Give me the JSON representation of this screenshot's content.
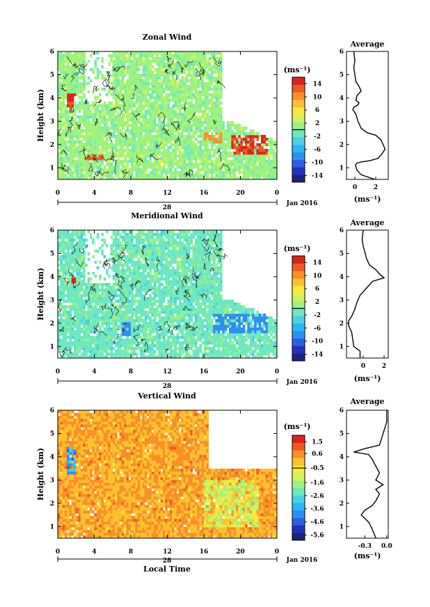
{
  "panels": [
    {
      "id": "zonal",
      "title": "Zonal Wind",
      "ylabel": "Height (km)",
      "yticks": [
        "1",
        "2",
        "3",
        "4",
        "5",
        "6"
      ],
      "xticks": [
        "0",
        "4",
        "8",
        "12",
        "16",
        "20",
        "0"
      ],
      "date_label": "28",
      "month_label": "Jan 2016",
      "xlabel": "",
      "colorbar": {
        "unit": "(ms⁻¹)",
        "ticks": [
          "14",
          "10",
          "6",
          "2",
          "-2",
          "-6",
          "-10",
          "-14"
        ],
        "min": -16,
        "max": 16
      },
      "avg": {
        "title": "Average",
        "xticks": [
          "0",
          "2"
        ],
        "xlabel": "(ms⁻¹)",
        "xlim": [
          -0.8,
          3.2
        ],
        "profile": [
          [
            1.9,
            0.5
          ],
          [
            0.6,
            0.7
          ],
          [
            0.2,
            0.9
          ],
          [
            0.05,
            1.1
          ],
          [
            0.2,
            1.2
          ],
          [
            0.6,
            1.25
          ],
          [
            1.4,
            1.3
          ],
          [
            2.2,
            1.4
          ],
          [
            2.6,
            1.6
          ],
          [
            2.9,
            1.8
          ],
          [
            2.7,
            2.0
          ],
          [
            2.5,
            2.2
          ],
          [
            2.0,
            2.4
          ],
          [
            1.2,
            2.5
          ],
          [
            0.6,
            2.7
          ],
          [
            0.3,
            3.0
          ],
          [
            0.1,
            3.3
          ],
          [
            -0.2,
            3.5
          ],
          [
            -0.1,
            3.6
          ],
          [
            0.3,
            3.7
          ],
          [
            0.4,
            3.8
          ],
          [
            0.1,
            3.9
          ],
          [
            0.2,
            4.1
          ],
          [
            0.6,
            4.3
          ],
          [
            0.4,
            4.5
          ],
          [
            0.1,
            4.7
          ],
          [
            0.0,
            5.0
          ],
          [
            -0.1,
            5.3
          ],
          [
            0.0,
            5.6
          ],
          [
            -0.1,
            6.0
          ]
        ]
      }
    },
    {
      "id": "meridional",
      "title": "Meridional Wind",
      "ylabel": "Height (km)",
      "yticks": [
        "1",
        "2",
        "3",
        "4",
        "5",
        "6"
      ],
      "xticks": [
        "0",
        "4",
        "8",
        "12",
        "16",
        "20",
        "0"
      ],
      "date_label": "28",
      "month_label": "Jan 2016",
      "xlabel": "",
      "colorbar": {
        "unit": "(ms⁻¹)",
        "ticks": [
          "14",
          "10",
          "6",
          "2",
          "-2",
          "-6",
          "-10",
          "-14"
        ],
        "min": -16,
        "max": 16
      },
      "avg": {
        "title": "Average",
        "xticks": [
          "0",
          "2"
        ],
        "xlabel": "(ms⁻¹)",
        "xlim": [
          -1.6,
          2.4
        ],
        "profile": [
          [
            -0.3,
            0.5
          ],
          [
            -0.3,
            0.8
          ],
          [
            -0.9,
            1.0
          ],
          [
            -1.0,
            1.3
          ],
          [
            -1.1,
            1.6
          ],
          [
            -1.4,
            1.9
          ],
          [
            -1.4,
            2.1
          ],
          [
            -1.1,
            2.3
          ],
          [
            -0.8,
            2.6
          ],
          [
            -0.6,
            2.9
          ],
          [
            -0.3,
            3.2
          ],
          [
            0.3,
            3.5
          ],
          [
            0.9,
            3.8
          ],
          [
            2.0,
            3.95
          ],
          [
            1.6,
            4.1
          ],
          [
            1.2,
            4.3
          ],
          [
            0.6,
            4.5
          ],
          [
            0.3,
            4.8
          ],
          [
            0.2,
            5.0
          ],
          [
            0.0,
            5.3
          ],
          [
            -0.1,
            5.6
          ],
          [
            0.0,
            6.0
          ]
        ]
      }
    },
    {
      "id": "vertical",
      "title": "Vertical Wind",
      "ylabel": "Height (km)",
      "yticks": [
        "1",
        "2",
        "3",
        "4",
        "5",
        "6"
      ],
      "xticks": [
        "0",
        "4",
        "8",
        "12",
        "16",
        "20",
        "0"
      ],
      "date_label": "28",
      "month_label": "Jan 2016",
      "xlabel": "Local Time",
      "colorbar": {
        "unit": "(ms⁻¹)",
        "ticks": [
          "1.5",
          "0.6",
          "-0.5",
          "-1.6",
          "-2.6",
          "-3.6",
          "-4.6",
          "-5.6"
        ],
        "min": -6,
        "max": 2
      },
      "avg": {
        "title": "Average",
        "xticks": [
          "-0.3",
          "0.0"
        ],
        "xlabel": "(ms⁻¹)",
        "xlim": [
          -0.55,
          0.02
        ],
        "profile": [
          [
            -0.15,
            0.5
          ],
          [
            -0.2,
            0.9
          ],
          [
            -0.25,
            1.2
          ],
          [
            -0.35,
            1.5
          ],
          [
            -0.3,
            1.7
          ],
          [
            -0.2,
            1.9
          ],
          [
            -0.15,
            2.1
          ],
          [
            -0.1,
            2.4
          ],
          [
            -0.15,
            2.6
          ],
          [
            -0.05,
            2.8
          ],
          [
            -0.15,
            3.0
          ],
          [
            -0.1,
            3.3
          ],
          [
            -0.15,
            3.6
          ],
          [
            -0.2,
            3.9
          ],
          [
            -0.25,
            4.1
          ],
          [
            -0.45,
            4.2
          ],
          [
            -0.3,
            4.35
          ],
          [
            -0.1,
            4.5
          ],
          [
            -0.05,
            5.0
          ],
          [
            0.0,
            5.5
          ],
          [
            0.0,
            6.0
          ]
        ]
      }
    }
  ],
  "chart_data": [
    {
      "type": "heatmap",
      "title": "Zonal Wind",
      "ylabel": "Height (km)",
      "xlabel": "",
      "xlim": [
        0,
        24
      ],
      "ylim": [
        0.5,
        6
      ],
      "colorbar_range": [
        -16,
        16
      ],
      "features": [
        {
          "x": [
            0,
            18
          ],
          "y": [
            0.5,
            6
          ],
          "value": 1,
          "note": "background"
        },
        {
          "x": [
            1,
            2
          ],
          "y": [
            3.5,
            4.2
          ],
          "value": 14
        },
        {
          "x": [
            3,
            5
          ],
          "y": [
            1.3,
            1.6
          ],
          "value": 12
        },
        {
          "x": [
            16,
            18
          ],
          "y": [
            2,
            2.5
          ],
          "value": 10
        },
        {
          "x": [
            19,
            23
          ],
          "y": [
            1.6,
            2.4
          ],
          "value": 14
        }
      ]
    },
    {
      "type": "heatmap",
      "title": "Meridional Wind",
      "ylabel": "Height (km)",
      "xlabel": "",
      "xlim": [
        0,
        24
      ],
      "ylim": [
        0.5,
        6
      ],
      "colorbar_range": [
        -16,
        16
      ],
      "features": [
        {
          "x": [
            0,
            18
          ],
          "y": [
            0.5,
            6
          ],
          "value": -1,
          "note": "background"
        },
        {
          "x": [
            1.5,
            2
          ],
          "y": [
            3.7,
            4.1
          ],
          "value": 14
        },
        {
          "x": [
            7,
            8
          ],
          "y": [
            1.5,
            2
          ],
          "value": -8
        },
        {
          "x": [
            17,
            23
          ],
          "y": [
            1.6,
            2.4
          ],
          "value": -8
        }
      ]
    },
    {
      "type": "heatmap",
      "title": "Vertical Wind",
      "ylabel": "Height (km)",
      "xlabel": "Local Time",
      "xlim": [
        0,
        24
      ],
      "ylim": [
        0.5,
        6
      ],
      "colorbar_range": [
        -6,
        2
      ],
      "features": [
        {
          "x": [
            0,
            24
          ],
          "y": [
            0.5,
            6
          ],
          "value": 0.3,
          "note": "background"
        },
        {
          "x": [
            1,
            2
          ],
          "y": [
            3.2,
            4.4
          ],
          "value": -3.6
        },
        {
          "x": [
            16,
            22
          ],
          "y": [
            1,
            3
          ],
          "value": -1
        }
      ]
    }
  ]
}
